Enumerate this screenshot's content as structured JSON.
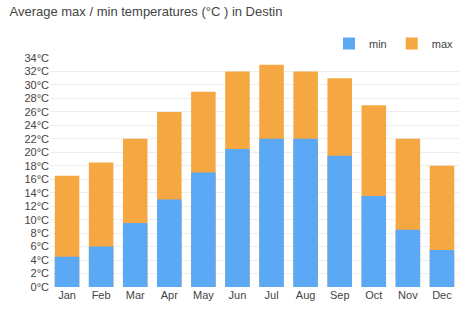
{
  "chart_data": {
    "type": "bar",
    "title": "Average max / min temperatures (°C ) in Destin",
    "categories": [
      "Jan",
      "Feb",
      "Mar",
      "Apr",
      "May",
      "Jun",
      "Jul",
      "Aug",
      "Sep",
      "Oct",
      "Nov",
      "Dec"
    ],
    "series": [
      {
        "name": "max",
        "color": "#f5a742",
        "values": [
          16.5,
          18.5,
          22,
          26,
          29,
          32,
          33,
          32,
          31,
          27,
          22,
          18
        ]
      },
      {
        "name": "min",
        "color": "#5ba8f5",
        "values": [
          4.5,
          6,
          9.5,
          13,
          17,
          20.5,
          22,
          22,
          19.5,
          13.5,
          8.5,
          5.5
        ]
      }
    ],
    "ylim": [
      0,
      34
    ],
    "yticks": [
      {
        "value": 0,
        "label": "0°C"
      },
      {
        "value": 2,
        "label": "2°C"
      },
      {
        "value": 4,
        "label": "4°C"
      },
      {
        "value": 6,
        "label": "6°C"
      },
      {
        "value": 8,
        "label": "8°C"
      },
      {
        "value": 10,
        "label": "10°C"
      },
      {
        "value": 12,
        "label": "12°C"
      },
      {
        "value": 14,
        "label": "14°C"
      },
      {
        "value": 16,
        "label": "16°C"
      },
      {
        "value": 18,
        "label": "18°C"
      },
      {
        "value": 20,
        "label": "20°C"
      },
      {
        "value": 22,
        "label": "22°C"
      },
      {
        "value": 24,
        "label": "24°C"
      },
      {
        "value": 26,
        "label": "26°C"
      },
      {
        "value": 28,
        "label": "28°C"
      },
      {
        "value": 30,
        "label": "30°C"
      },
      {
        "value": 32,
        "label": "32°C"
      },
      {
        "value": 34,
        "label": "34°C"
      }
    ],
    "grid": true,
    "legend": "upper right"
  }
}
